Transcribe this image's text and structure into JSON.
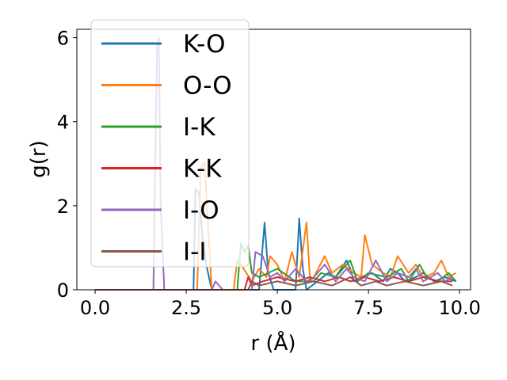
{
  "chart_data": {
    "type": "line",
    "title": "",
    "xlabel": "r (Å)",
    "ylabel": "g(r)",
    "xlim": [
      -0.5,
      10.3
    ],
    "ylim": [
      0,
      6.2
    ],
    "xticks": [
      0.0,
      2.5,
      5.0,
      7.5,
      10.0
    ],
    "xtick_labels": [
      "0.0",
      "2.5",
      "5.0",
      "7.5",
      "10.0"
    ],
    "yticks": [
      0,
      2,
      4,
      6
    ],
    "ytick_labels": [
      "0",
      "2",
      "4",
      "6"
    ],
    "grid": false,
    "legend_position": "top-left",
    "series": [
      {
        "name": "K-O",
        "color": "#1f77b4",
        "x": [
          0,
          2.6,
          2.7,
          2.75,
          2.85,
          2.95,
          3.05,
          3.2,
          4.5,
          4.65,
          4.75,
          4.9,
          5.5,
          5.6,
          5.7,
          5.8,
          6.1,
          6.4,
          6.6,
          6.9,
          7.0,
          7.1,
          7.3,
          7.6,
          7.9,
          8.1,
          8.3,
          8.5,
          8.8,
          9.0,
          9.3,
          9.6,
          9.9
        ],
        "y": [
          0,
          0,
          0,
          2.4,
          2.3,
          1.2,
          0.6,
          0,
          0,
          1.6,
          0.4,
          0,
          0,
          1.7,
          0.5,
          0,
          0.2,
          0.4,
          0.3,
          0.7,
          0.5,
          0.2,
          0.3,
          0.4,
          0.2,
          0.5,
          0.4,
          0.2,
          0.3,
          0.4,
          0.2,
          0.3,
          0.2
        ]
      },
      {
        "name": "O-O",
        "color": "#ff7f0e",
        "x": [
          0,
          2.8,
          2.9,
          3.0,
          3.1,
          3.2,
          3.8,
          3.9,
          4.0,
          4.3,
          4.5,
          4.7,
          4.8,
          5.0,
          5.2,
          5.4,
          5.6,
          5.8,
          5.9,
          6.0,
          6.3,
          6.5,
          6.8,
          7.1,
          7.3,
          7.4,
          7.6,
          7.9,
          8.1,
          8.3,
          8.6,
          8.8,
          9.0,
          9.3,
          9.5,
          9.7,
          9.9
        ],
        "y": [
          0,
          0,
          2.9,
          3.05,
          1.5,
          0,
          0,
          0.7,
          0.6,
          0.2,
          0.5,
          0.3,
          0.8,
          0.6,
          0.2,
          0.9,
          0.3,
          1.6,
          0.2,
          0.3,
          0.8,
          0.4,
          0.6,
          0.4,
          0.3,
          1.3,
          0.6,
          0.4,
          0.3,
          0.8,
          0.4,
          0.6,
          0.3,
          0.4,
          0.7,
          0.3,
          0.4
        ]
      },
      {
        "name": "I-K",
        "color": "#2ca02c",
        "x": [
          0,
          3.9,
          4.0,
          4.1,
          4.2,
          4.3,
          4.5,
          5.0,
          5.5,
          6.0,
          6.2,
          6.6,
          7.0,
          7.2,
          7.5,
          8.0,
          8.4,
          8.6,
          8.9,
          9.1,
          9.4,
          9.7,
          9.9
        ],
        "y": [
          0,
          0,
          1.1,
          0.9,
          1.05,
          0.4,
          0.3,
          0.5,
          0.2,
          0.2,
          0.4,
          0.3,
          0.7,
          0.2,
          0.4,
          0.3,
          0.5,
          0.2,
          0.6,
          0.3,
          0.2,
          0.4,
          0.2
        ]
      },
      {
        "name": "K-K",
        "color": "#d62728",
        "x": [
          0,
          4.1,
          4.2,
          4.3,
          4.6,
          5.0,
          5.5,
          5.9,
          6.3,
          6.7,
          7.0,
          7.4,
          7.8,
          8.2,
          8.6,
          9.0,
          9.4,
          9.8
        ],
        "y": [
          0,
          0,
          0.3,
          0.1,
          0.2,
          0.3,
          0.2,
          0.3,
          0.2,
          0.3,
          0.2,
          0.3,
          0.2,
          0.3,
          0.2,
          0.3,
          0.2,
          0.2
        ]
      },
      {
        "name": "I-O",
        "color": "#9467bd",
        "x": [
          0,
          1.6,
          1.7,
          1.75,
          1.8,
          1.9,
          3.2,
          3.3,
          3.5,
          4.3,
          4.4,
          4.6,
          4.8,
          5.0,
          5.2,
          5.5,
          5.8,
          6.0,
          6.3,
          6.6,
          6.9,
          7.1,
          7.4,
          7.7,
          8.0,
          8.3,
          8.6,
          8.8,
          9.0,
          9.2,
          9.4,
          9.6,
          9.8
        ],
        "y": [
          0,
          0,
          5.8,
          6.0,
          2.0,
          0,
          0,
          0.2,
          0,
          0,
          0.9,
          0.8,
          0.3,
          0.4,
          0.2,
          0.5,
          0.2,
          0.3,
          0.6,
          0.2,
          0.5,
          0.3,
          0.2,
          0.7,
          0.2,
          0.4,
          0.3,
          0.5,
          0.2,
          0.3,
          0.4,
          0.2,
          0.3
        ]
      },
      {
        "name": "I-I",
        "color": "#8c564b",
        "x": [
          0,
          4.2,
          4.3,
          4.5,
          5.0,
          5.5,
          6.0,
          6.5,
          7.0,
          7.3,
          7.7,
          8.0,
          8.5,
          9.0,
          9.5,
          9.8
        ],
        "y": [
          0,
          0,
          0.2,
          0.1,
          0.2,
          0.1,
          0.2,
          0.1,
          0.3,
          0.1,
          0.2,
          0.1,
          0.2,
          0.1,
          0.2,
          0.1
        ]
      }
    ]
  }
}
